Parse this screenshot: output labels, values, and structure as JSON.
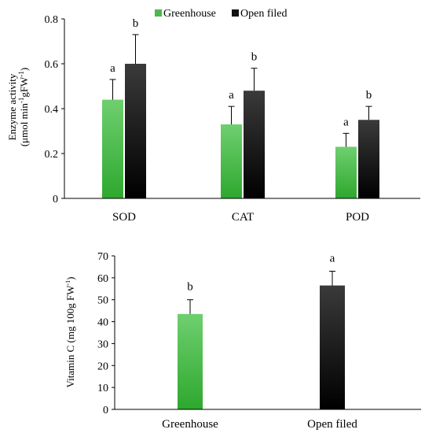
{
  "chart_data": [
    {
      "type": "bar",
      "categories": [
        "SOD",
        "CAT",
        "POD"
      ],
      "series": [
        {
          "name": "Greenhouse",
          "values": [
            0.44,
            0.33,
            0.23
          ],
          "errors": [
            0.09,
            0.08,
            0.06
          ],
          "letters": [
            "a",
            "a",
            "a"
          ],
          "color": "#4cb84c"
        },
        {
          "name": "Open filed",
          "values": [
            0.6,
            0.48,
            0.35
          ],
          "errors": [
            0.13,
            0.1,
            0.06
          ],
          "letters": [
            "b",
            "b",
            "b"
          ],
          "color": "#111111"
        }
      ],
      "ylabel_line1": "Enzyme activity",
      "ylabel_line2_parts": [
        "(μmol min",
        "-1",
        "gFW",
        "-1",
        ")"
      ],
      "ylim": [
        0,
        0.8
      ],
      "yticks": [
        "0",
        "0.2",
        "0.4",
        "0.6",
        "0.8"
      ],
      "legend_position": "top"
    },
    {
      "type": "bar",
      "categories": [
        "Greenhouse",
        "Open filed"
      ],
      "values": [
        43.5,
        56.5
      ],
      "errors": [
        6.5,
        6.5
      ],
      "letters": [
        "b",
        "a"
      ],
      "colors": [
        "#4cb84c",
        "#111111"
      ],
      "ylabel_parts": [
        "Vitamin C (mg 100g FW",
        "-1",
        ")"
      ],
      "ylim": [
        0,
        70
      ],
      "yticks": [
        "0",
        "10",
        "20",
        "30",
        "40",
        "50",
        "60",
        "70"
      ]
    }
  ]
}
